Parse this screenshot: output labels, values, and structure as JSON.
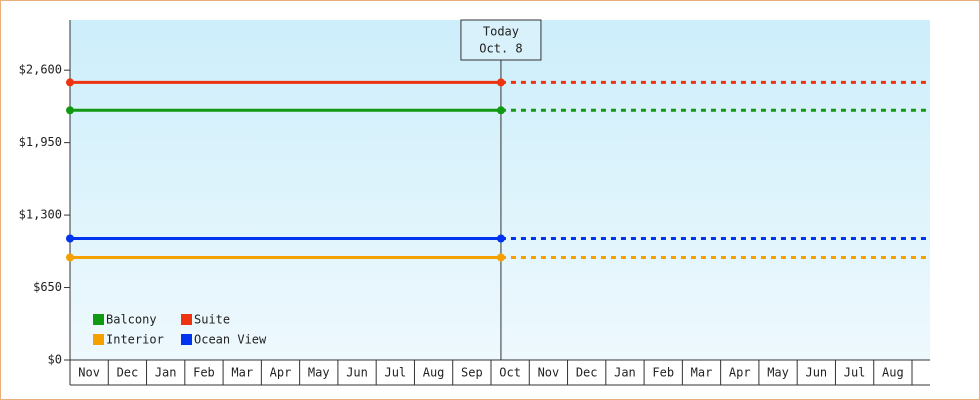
{
  "chart_data": {
    "type": "line",
    "categories": [
      "Nov",
      "Dec",
      "Jan",
      "Feb",
      "Mar",
      "Apr",
      "May",
      "Jun",
      "Jul",
      "Aug",
      "Sep",
      "Oct",
      "Nov",
      "Dec",
      "Jan",
      "Feb",
      "Mar",
      "Apr",
      "May",
      "Jun",
      "Jul",
      "Aug"
    ],
    "series": [
      {
        "name": "Balcony",
        "color": "#119911",
        "value": 2240
      },
      {
        "name": "Suite",
        "color": "#ee3311",
        "value": 2490
      },
      {
        "name": "Interior",
        "color": "#f5a000",
        "value": 920
      },
      {
        "name": "Ocean View",
        "color": "#0033ee",
        "value": 1090
      }
    ],
    "ylim": [
      0,
      3050
    ],
    "yticks": [
      {
        "value": 0,
        "label": "$0"
      },
      {
        "value": 650,
        "label": "$650"
      },
      {
        "value": 1300,
        "label": "$1,300"
      },
      {
        "value": 1950,
        "label": "$1,950"
      },
      {
        "value": 2600,
        "label": "$2,600"
      }
    ],
    "annotation": {
      "label": "Today",
      "date": "Oct. 8"
    },
    "legend": "bottom-left"
  }
}
